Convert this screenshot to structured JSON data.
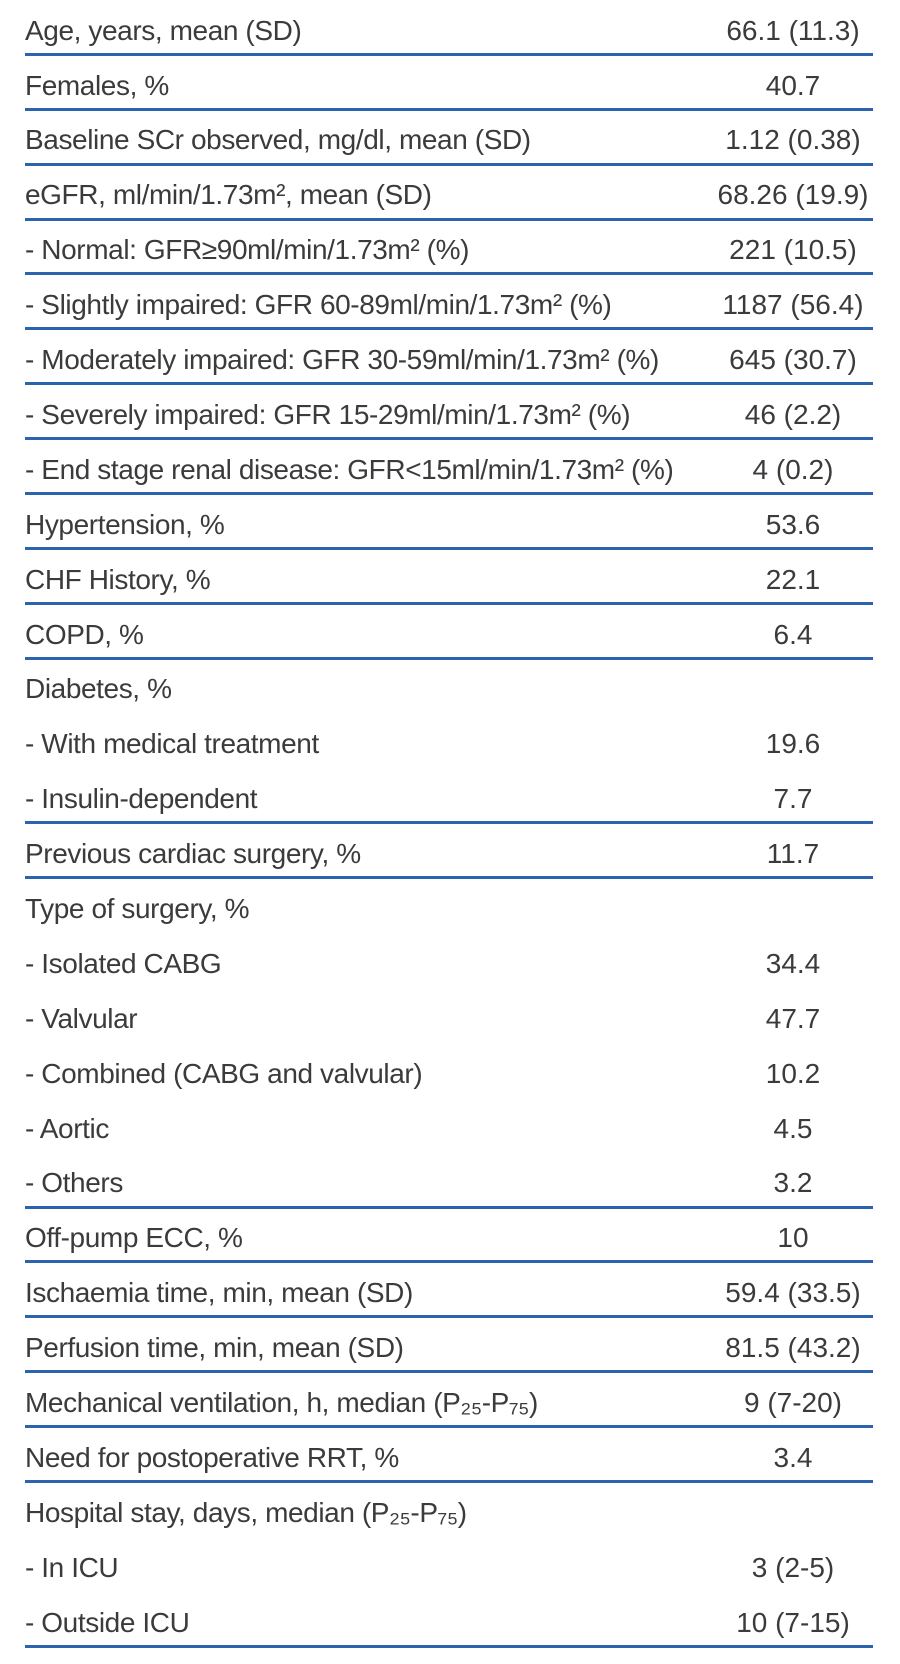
{
  "style": {
    "divider_color": "#2b63ad",
    "text_color": "#3b3b3b",
    "background_color": "#ffffff"
  },
  "table": {
    "rows": [
      {
        "label": "Age, years, mean (SD)",
        "value": "66.1 (11.3)",
        "divider": true
      },
      {
        "label": "Females, %",
        "value": "40.7",
        "divider": true
      },
      {
        "label": "Baseline SCr observed, mg/dl, mean (SD)",
        "value": "1.12 (0.38)",
        "divider": true
      },
      {
        "label": "eGFR, ml/min/1.73m², mean (SD)",
        "value": "68.26 (19.9)",
        "divider": true
      },
      {
        "label": "- Normal: GFR≥90ml/min/1.73m² (%)",
        "value": "221 (10.5)",
        "divider": true
      },
      {
        "label": "- Slightly impaired: GFR 60-89ml/min/1.73m² (%)",
        "value": "1187 (56.4)",
        "divider": true
      },
      {
        "label": "- Moderately impaired: GFR 30-59ml/min/1.73m² (%)",
        "value": "645 (30.7)",
        "divider": true
      },
      {
        "label": "- Severely impaired: GFR 15-29ml/min/1.73m² (%)",
        "value": "46 (2.2)",
        "divider": true
      },
      {
        "label": "- End stage renal disease: GFR<15ml/min/1.73m² (%)",
        "value": "4 (0.2)",
        "divider": true
      },
      {
        "label": "Hypertension, %",
        "value": "53.6",
        "divider": true
      },
      {
        "label": "CHF History, %",
        "value": "22.1",
        "divider": true
      },
      {
        "label": "COPD, %",
        "value": "6.4",
        "divider": true
      },
      {
        "label": "Diabetes, %",
        "value": "",
        "divider": false
      },
      {
        "label": "- With medical treatment",
        "value": "19.6",
        "divider": false
      },
      {
        "label": "- Insulin-dependent",
        "value": "7.7",
        "divider": true
      },
      {
        "label": "Previous cardiac surgery, %",
        "value": "11.7",
        "divider": true
      },
      {
        "label": "Type of surgery, %",
        "value": "",
        "divider": false
      },
      {
        "label": "- Isolated CABG",
        "value": "34.4",
        "divider": false
      },
      {
        "label": "- Valvular",
        "value": "47.7",
        "divider": false
      },
      {
        "label": "- Combined (CABG and valvular)",
        "value": "10.2",
        "divider": false
      },
      {
        "label": "- Aortic",
        "value": "4.5",
        "divider": false
      },
      {
        "label": "- Others",
        "value": "3.2",
        "divider": true
      },
      {
        "label": "Off-pump ECC, %",
        "value": "10",
        "divider": true
      },
      {
        "label": "Ischaemia time, min, mean (SD)",
        "value": "59.4 (33.5)",
        "divider": true
      },
      {
        "label": "Perfusion time, min, mean (SD)",
        "value": "81.5 (43.2)",
        "divider": true
      },
      {
        "label": "Mechanical ventilation, h, median (P₂₅-P₇₅)",
        "value": "9 (7-20)",
        "divider": true
      },
      {
        "label": "Need for postoperative RRT, %",
        "value": "3.4",
        "divider": true
      },
      {
        "label": "Hospital stay, days, median (P₂₅-P₇₅)",
        "value": "",
        "divider": false
      },
      {
        "label": "- In ICU",
        "value": "3 (2-5)",
        "divider": false
      },
      {
        "label": "- Outside ICU",
        "value": "10 (7-15)",
        "divider": true
      }
    ]
  }
}
